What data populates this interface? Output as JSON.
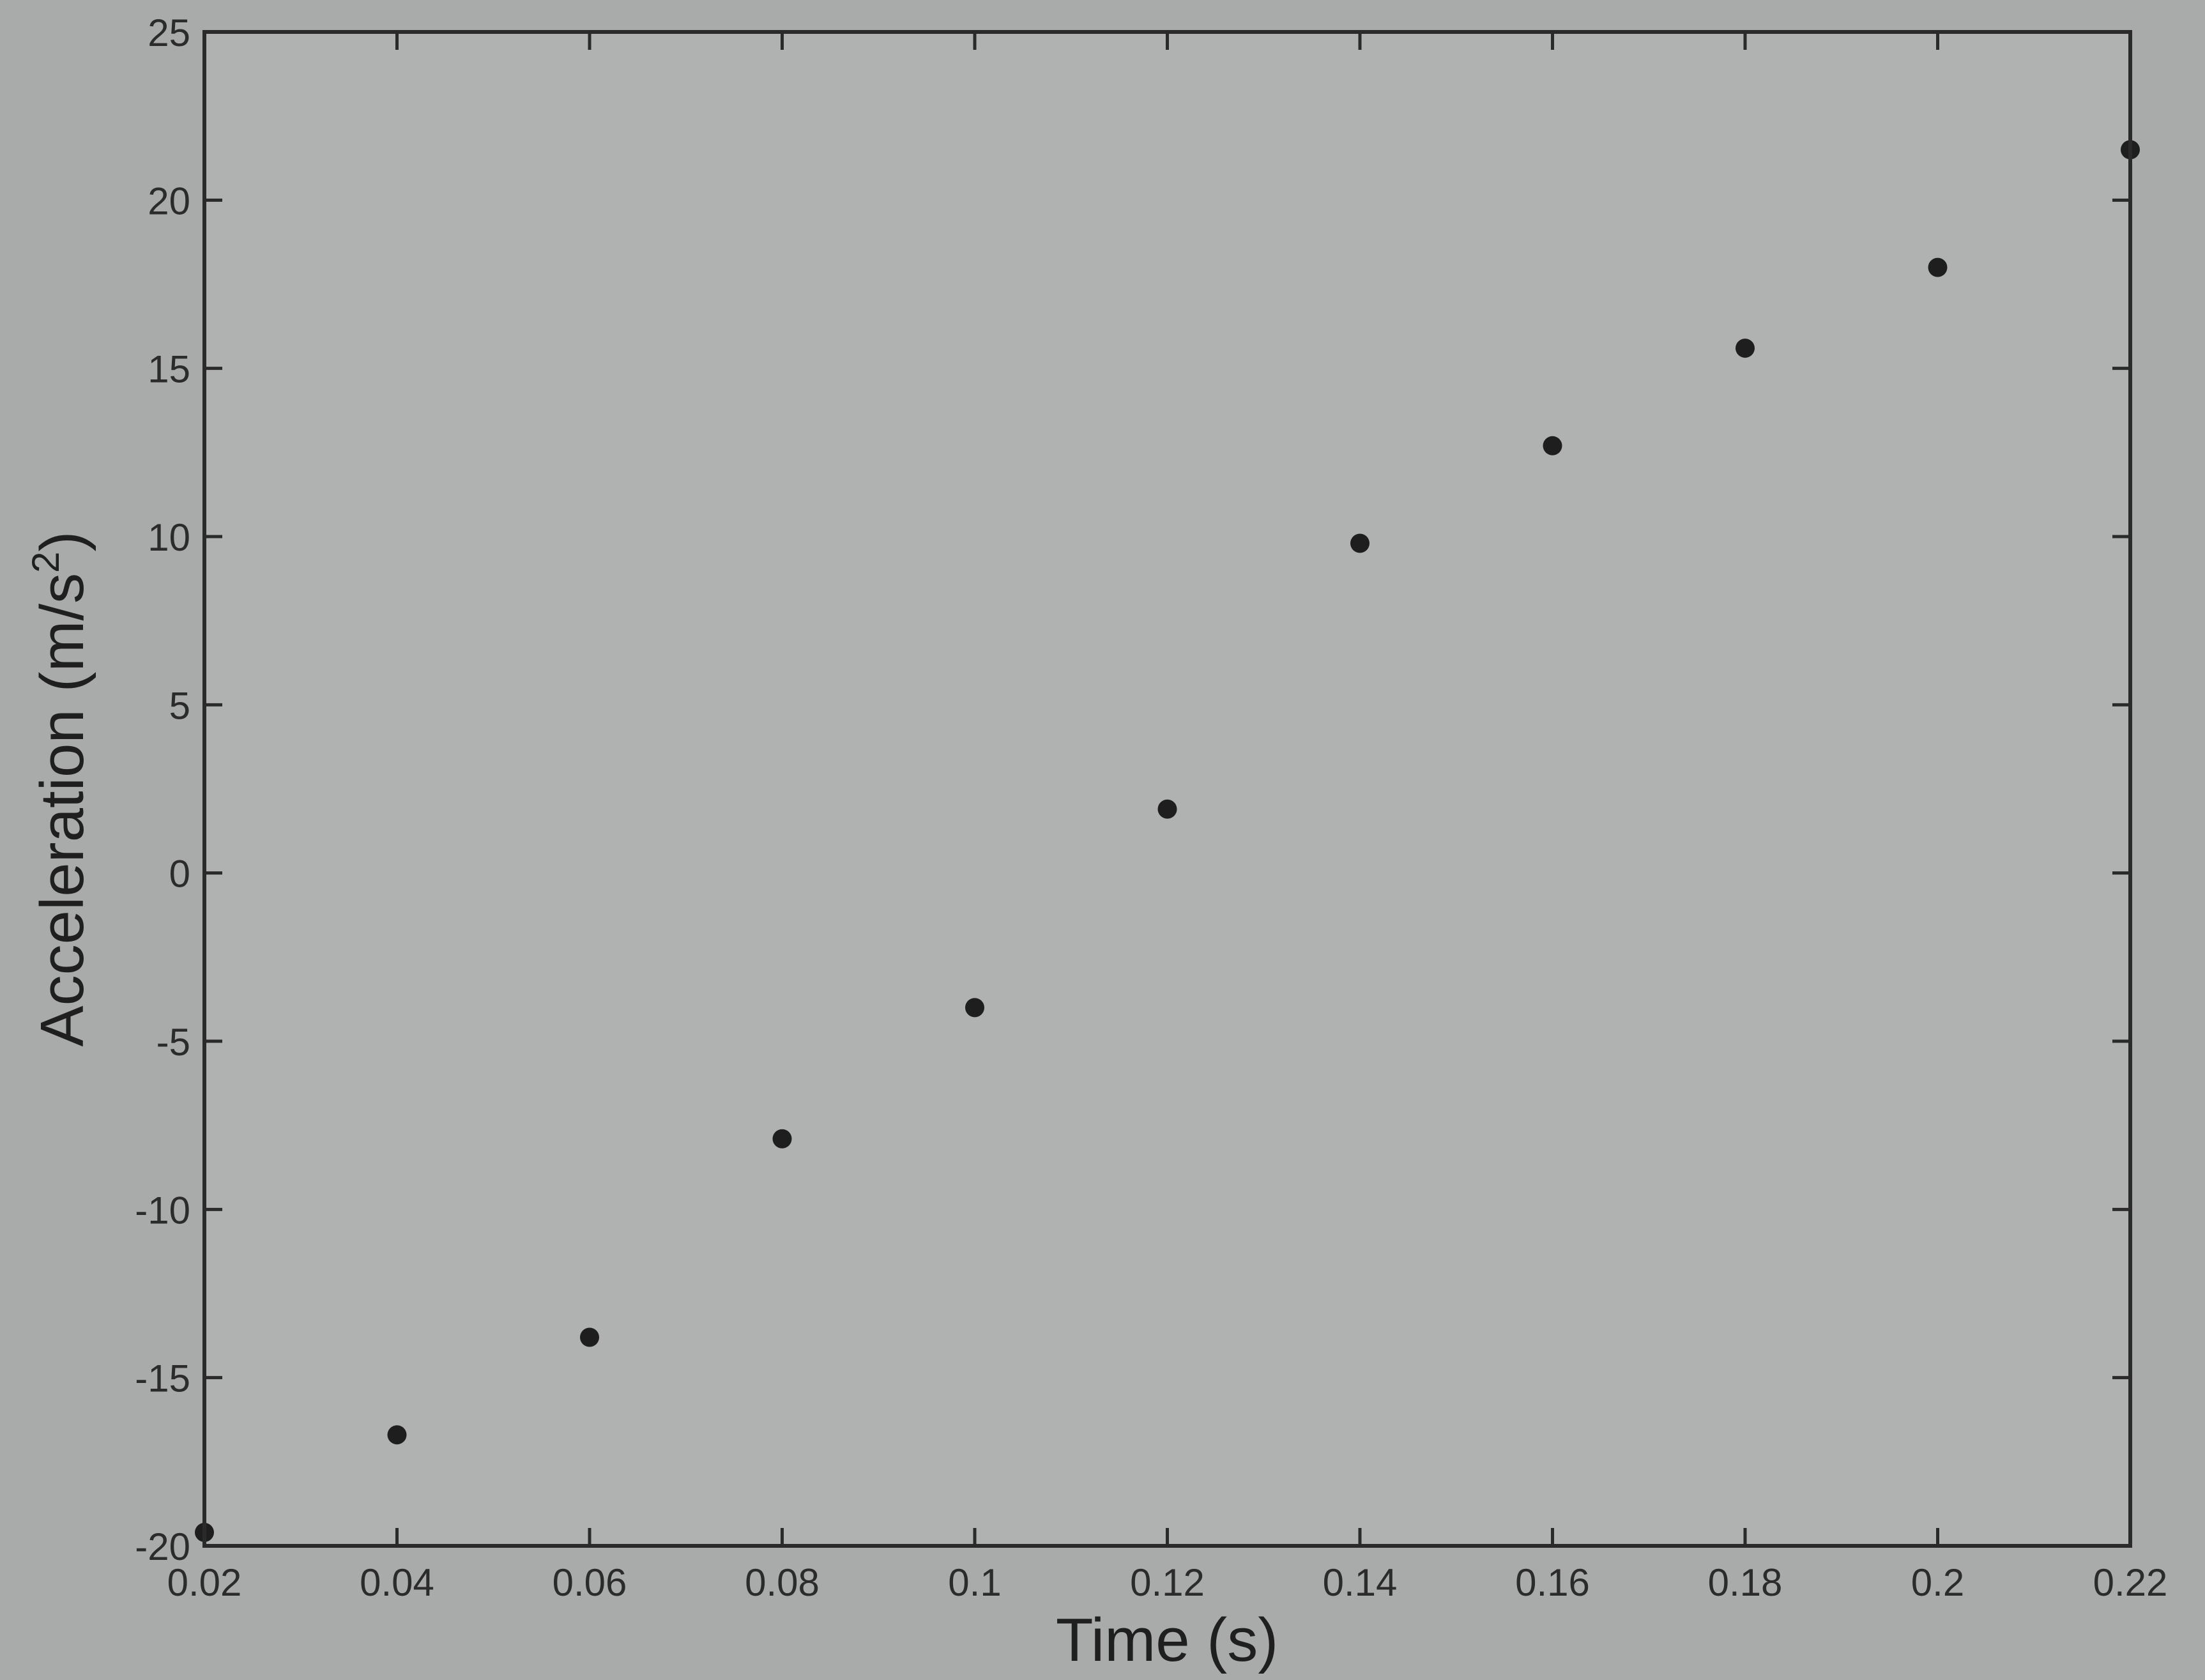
{
  "chart_data": {
    "type": "scatter",
    "title": "",
    "xlabel": "Time (s)",
    "ylabel_main": "Acceleration (m/s",
    "ylabel_sup": "2",
    "ylabel_close": ")",
    "xlim": [
      0.02,
      0.22
    ],
    "ylim": [
      -20,
      25
    ],
    "xticks": [
      0.02,
      0.04,
      0.06,
      0.08,
      0.1,
      0.12,
      0.14,
      0.16,
      0.18,
      0.2,
      0.22
    ],
    "xtick_labels": [
      "0.02",
      "0.04",
      "0.06",
      "0.08",
      "0.1",
      "0.12",
      "0.14",
      "0.16",
      "0.18",
      "0.2",
      "0.22"
    ],
    "yticks": [
      -20,
      -15,
      -10,
      -5,
      0,
      5,
      10,
      15,
      20,
      25
    ],
    "ytick_labels": [
      "-20",
      "-15",
      "-10",
      "-5",
      "0",
      "5",
      "10",
      "15",
      "20",
      "25"
    ],
    "grid": false,
    "marker_color": "#1e1e1e",
    "points": [
      {
        "x": 0.02,
        "y": -19.6
      },
      {
        "x": 0.04,
        "y": -16.7
      },
      {
        "x": 0.06,
        "y": -13.8
      },
      {
        "x": 0.08,
        "y": -7.9
      },
      {
        "x": 0.1,
        "y": -4.0
      },
      {
        "x": 0.12,
        "y": 1.9
      },
      {
        "x": 0.14,
        "y": 9.8
      },
      {
        "x": 0.16,
        "y": 12.7
      },
      {
        "x": 0.18,
        "y": 15.6
      },
      {
        "x": 0.2,
        "y": 18.0
      },
      {
        "x": 0.22,
        "y": 21.5
      }
    ]
  },
  "colors": {
    "background": "#a9abaa",
    "axes": "#2a2a2a",
    "text": "#2b2b2b"
  }
}
